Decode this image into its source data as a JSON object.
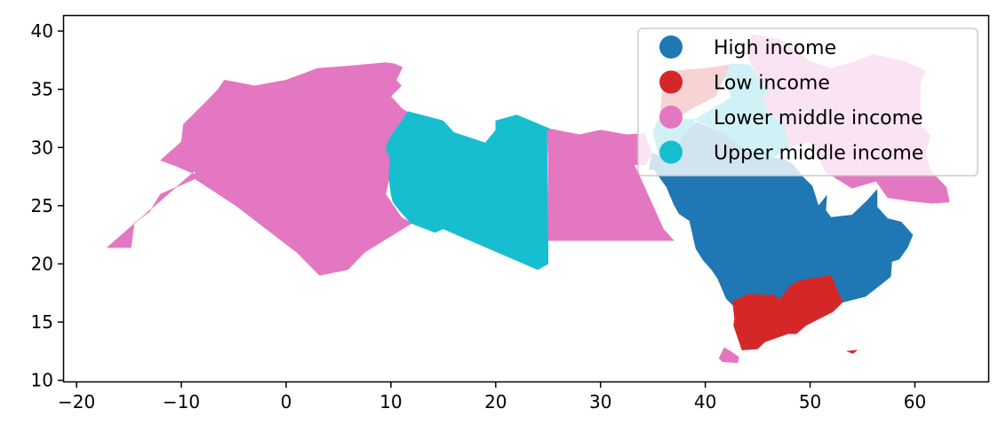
{
  "chart_data": {
    "type": "choropleth",
    "title": "",
    "xlabel": "",
    "ylabel": "",
    "xlim": [
      -21.2,
      67.0
    ],
    "ylim": [
      9.9,
      41.3
    ],
    "xticks": [
      -20,
      -10,
      0,
      10,
      20,
      30,
      40,
      50,
      60
    ],
    "xtick_labels": [
      "−20",
      "−10",
      "0",
      "10",
      "20",
      "30",
      "40",
      "50",
      "60"
    ],
    "yticks": [
      10,
      15,
      20,
      25,
      30,
      35,
      40
    ],
    "ytick_labels": [
      "10",
      "15",
      "20",
      "25",
      "30",
      "35",
      "40"
    ],
    "grid": false,
    "legend_position": "top-right",
    "categories": [
      {
        "name": "High income",
        "color": "#1f77b4"
      },
      {
        "name": "Low income",
        "color": "#d62728"
      },
      {
        "name": "Lower middle income",
        "color": "#e377c2"
      },
      {
        "name": "Upper middle income",
        "color": "#17becf"
      }
    ],
    "regions": [
      {
        "category": "Lower middle income",
        "outline": [
          [
            -17.1,
            21.4
          ],
          [
            -14.8,
            21.4
          ],
          [
            -14.5,
            23.5
          ],
          [
            -13.0,
            24.5
          ],
          [
            -12.0,
            26.0
          ],
          [
            -8.7,
            27.3
          ],
          [
            -8.7,
            27.7
          ],
          [
            -10.5,
            28.4
          ],
          [
            -12.0,
            28.9
          ],
          [
            -10.0,
            30.5
          ],
          [
            -9.8,
            32.0
          ],
          [
            -8.0,
            33.6
          ],
          [
            -6.5,
            35.0
          ],
          [
            -5.9,
            35.8
          ],
          [
            -3.0,
            35.3
          ],
          [
            0.0,
            35.8
          ],
          [
            3.0,
            36.8
          ],
          [
            6.0,
            37.0
          ],
          [
            9.5,
            37.3
          ],
          [
            10.3,
            37.2
          ],
          [
            11.1,
            36.9
          ],
          [
            10.5,
            35.8
          ],
          [
            11.0,
            35.3
          ],
          [
            10.0,
            34.4
          ],
          [
            11.1,
            33.3
          ],
          [
            11.5,
            33.1
          ],
          [
            11.6,
            32.0
          ],
          [
            10.0,
            30.8
          ],
          [
            9.7,
            30.0
          ],
          [
            10.0,
            28.0
          ],
          [
            9.5,
            26.0
          ],
          [
            11.0,
            24.0
          ],
          [
            12.0,
            23.5
          ],
          [
            7.5,
            21.0
          ],
          [
            5.9,
            19.5
          ],
          [
            4.2,
            19.2
          ],
          [
            3.2,
            19.0
          ],
          [
            1.0,
            21.0
          ],
          [
            -4.8,
            25.0
          ],
          [
            -8.7,
            27.3
          ],
          [
            -8.7,
            28.0
          ]
        ]
      },
      {
        "category": "Upper middle income",
        "outline": [
          [
            9.5,
            30.0
          ],
          [
            10.0,
            31.0
          ],
          [
            11.2,
            32.5
          ],
          [
            11.6,
            33.1
          ],
          [
            15.0,
            32.3
          ],
          [
            16.0,
            31.3
          ],
          [
            19.0,
            30.4
          ],
          [
            20.0,
            31.5
          ],
          [
            20.0,
            32.3
          ],
          [
            22.0,
            32.8
          ],
          [
            25.2,
            31.6
          ],
          [
            24.9,
            31.4
          ],
          [
            24.9,
            29.0
          ],
          [
            25.0,
            22.0
          ],
          [
            25.0,
            20.0
          ],
          [
            24.0,
            19.5
          ],
          [
            24.0,
            19.5
          ],
          [
            15.0,
            23.0
          ],
          [
            14.2,
            22.7
          ],
          [
            11.9,
            23.5
          ],
          [
            10.8,
            24.6
          ],
          [
            10.2,
            25.3
          ],
          [
            10.0,
            26.0
          ],
          [
            9.8,
            27.5
          ],
          [
            9.9,
            29.0
          ]
        ]
      },
      {
        "category": "Lower middle income",
        "outline": [
          [
            25.0,
            22.0
          ],
          [
            37.0,
            22.0
          ],
          [
            36.0,
            23.0
          ],
          [
            35.5,
            24.0
          ],
          [
            34.5,
            26.0
          ],
          [
            33.5,
            28.0
          ],
          [
            32.5,
            29.6
          ],
          [
            33.0,
            28.5
          ],
          [
            34.3,
            28.5
          ],
          [
            34.9,
            29.5
          ],
          [
            34.2,
            31.2
          ],
          [
            32.5,
            31.1
          ],
          [
            30.0,
            31.5
          ],
          [
            28.0,
            31.1
          ],
          [
            25.2,
            31.6
          ],
          [
            24.9,
            31.4
          ],
          [
            25.0,
            29.0
          ]
        ]
      },
      {
        "category": "Lower middle income",
        "outline": [
          [
            48.0,
            30.0
          ],
          [
            50.0,
            30.5
          ],
          [
            51.5,
            27.9
          ],
          [
            54.0,
            26.5
          ],
          [
            56.3,
            27.1
          ],
          [
            57.4,
            25.7
          ],
          [
            59.5,
            25.4
          ],
          [
            61.6,
            25.2
          ],
          [
            63.3,
            25.3
          ],
          [
            63.0,
            26.6
          ],
          [
            61.5,
            28.0
          ],
          [
            61.0,
            29.5
          ],
          [
            61.5,
            31.0
          ],
          [
            60.5,
            32.0
          ],
          [
            60.5,
            33.5
          ],
          [
            60.5,
            35.5
          ],
          [
            61.0,
            36.6
          ],
          [
            59.0,
            37.4
          ],
          [
            56.0,
            38.0
          ],
          [
            54.0,
            37.3
          ],
          [
            52.0,
            36.8
          ],
          [
            50.0,
            37.4
          ],
          [
            48.5,
            38.5
          ],
          [
            47.0,
            39.3
          ],
          [
            44.5,
            39.7
          ],
          [
            44.0,
            38.0
          ],
          [
            45.0,
            36.0
          ],
          [
            46.0,
            35.0
          ],
          [
            45.5,
            34.0
          ],
          [
            46.0,
            33.0
          ],
          [
            47.5,
            32.0
          ],
          [
            47.5,
            31.0
          ]
        ]
      },
      {
        "category": "Upper middle income",
        "outline": [
          [
            39.0,
            32.4
          ],
          [
            41.0,
            33.5
          ],
          [
            42.5,
            34.3
          ],
          [
            41.5,
            36.5
          ],
          [
            42.5,
            37.2
          ],
          [
            44.3,
            37.1
          ],
          [
            45.0,
            36.0
          ],
          [
            46.0,
            35.0
          ],
          [
            45.5,
            34.0
          ],
          [
            46.0,
            33.0
          ],
          [
            47.5,
            32.0
          ],
          [
            48.0,
            30.0
          ],
          [
            46.5,
            29.1
          ],
          [
            44.7,
            29.2
          ],
          [
            42.0,
            31.1
          ],
          [
            40.0,
            32.0
          ]
        ]
      },
      {
        "category": "Upper middle income",
        "outline": [
          [
            35.0,
            31.4
          ],
          [
            35.5,
            29.5
          ],
          [
            36.0,
            29.2
          ],
          [
            37.0,
            30.0
          ],
          [
            37.5,
            30.3
          ],
          [
            38.9,
            32.0
          ],
          [
            39.0,
            32.4
          ],
          [
            36.5,
            32.5
          ],
          [
            35.5,
            32.4
          ]
        ]
      },
      {
        "category": "Low income",
        "outline": [
          [
            35.7,
            32.7
          ],
          [
            36.8,
            32.3
          ],
          [
            38.8,
            33.4
          ],
          [
            41.0,
            34.4
          ],
          [
            42.3,
            37.1
          ],
          [
            40.0,
            36.8
          ],
          [
            37.0,
            36.6
          ],
          [
            36.0,
            36.0
          ],
          [
            35.9,
            35.0
          ]
        ]
      },
      {
        "category": "High income",
        "outline": [
          [
            34.9,
            29.5
          ],
          [
            36.0,
            29.2
          ],
          [
            37.5,
            30.3
          ],
          [
            38.0,
            31.2
          ],
          [
            39.2,
            32.2
          ],
          [
            42.0,
            31.1
          ],
          [
            44.7,
            29.2
          ],
          [
            46.5,
            29.1
          ],
          [
            47.5,
            29.0
          ],
          [
            48.4,
            28.5
          ],
          [
            49.3,
            27.5
          ],
          [
            50.2,
            26.7
          ],
          [
            50.8,
            25.0
          ],
          [
            51.6,
            25.9
          ],
          [
            51.5,
            24.6
          ],
          [
            52.0,
            24.0
          ],
          [
            54.0,
            24.2
          ],
          [
            55.4,
            25.4
          ],
          [
            56.4,
            26.4
          ],
          [
            56.4,
            24.9
          ],
          [
            57.4,
            23.9
          ],
          [
            58.7,
            23.6
          ],
          [
            59.8,
            22.5
          ],
          [
            59.3,
            21.4
          ],
          [
            58.5,
            20.4
          ],
          [
            57.8,
            20.2
          ],
          [
            57.7,
            18.9
          ],
          [
            56.3,
            17.9
          ],
          [
            55.3,
            17.2
          ],
          [
            53.1,
            16.7
          ],
          [
            52.0,
            19.0
          ],
          [
            49.1,
            18.6
          ],
          [
            48.2,
            18.2
          ],
          [
            47.0,
            16.9
          ],
          [
            46.7,
            17.3
          ],
          [
            44.1,
            17.4
          ],
          [
            43.2,
            17.0
          ],
          [
            42.8,
            16.3
          ],
          [
            42.0,
            17.0
          ],
          [
            41.2,
            18.7
          ],
          [
            40.6,
            19.5
          ],
          [
            39.8,
            20.3
          ],
          [
            39.1,
            21.3
          ],
          [
            38.5,
            23.7
          ],
          [
            37.5,
            24.3
          ],
          [
            37.0,
            25.1
          ],
          [
            36.3,
            26.6
          ],
          [
            35.1,
            28.1
          ],
          [
            34.6,
            28.1
          ]
        ]
      },
      {
        "category": "Low income",
        "outline": [
          [
            42.6,
            16.8
          ],
          [
            43.2,
            17.0
          ],
          [
            44.1,
            17.4
          ],
          [
            46.7,
            17.3
          ],
          [
            47.0,
            16.9
          ],
          [
            48.2,
            18.2
          ],
          [
            49.1,
            18.6
          ],
          [
            52.0,
            19.0
          ],
          [
            53.1,
            16.7
          ],
          [
            52.2,
            15.9
          ],
          [
            49.6,
            14.7
          ],
          [
            48.7,
            14.0
          ],
          [
            47.9,
            14.0
          ],
          [
            45.7,
            13.3
          ],
          [
            45.0,
            12.7
          ],
          [
            43.5,
            12.6
          ],
          [
            42.7,
            14.7
          ],
          [
            42.8,
            15.3
          ]
        ]
      },
      {
        "category": "Lower middle income",
        "outline": [
          [
            41.6,
            11.6
          ],
          [
            43.1,
            11.5
          ],
          [
            43.2,
            12.0
          ],
          [
            42.4,
            12.5
          ],
          [
            41.8,
            12.8
          ],
          [
            41.3,
            11.9
          ]
        ]
      },
      {
        "category": "Low income",
        "outline": [
          [
            53.5,
            12.5
          ],
          [
            54.5,
            12.6
          ],
          [
            54.1,
            12.3
          ]
        ]
      }
    ]
  }
}
